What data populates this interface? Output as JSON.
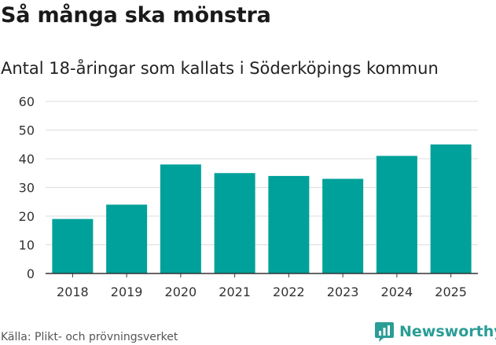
{
  "header": {
    "title": "Så många ska mönstra",
    "subtitle": "Antal 18-åringar som kallats i Söderköpings kommun"
  },
  "footer": {
    "source": "Källa: Plikt- och prövningsverket",
    "brand": "Newsworthy"
  },
  "colors": {
    "bar": "#00a19a",
    "grid": "#dddddd",
    "axis": "#333333",
    "brand": "#2a9d96"
  },
  "icons": {
    "brand_logo": "newsworthy-chart-bubble-icon"
  },
  "chart_data": {
    "type": "bar",
    "title": "Så många ska mönstra",
    "subtitle": "Antal 18-åringar som kallats i Söderköpings kommun",
    "xlabel": "",
    "ylabel": "",
    "categories": [
      "2018",
      "2019",
      "2020",
      "2021",
      "2022",
      "2023",
      "2024",
      "2025"
    ],
    "values": [
      19,
      24,
      38,
      35,
      34,
      33,
      41,
      45
    ],
    "ylim": [
      0,
      60
    ],
    "yticks": [
      0,
      10,
      20,
      30,
      40,
      50,
      60
    ],
    "grid": true,
    "legend": "none"
  }
}
